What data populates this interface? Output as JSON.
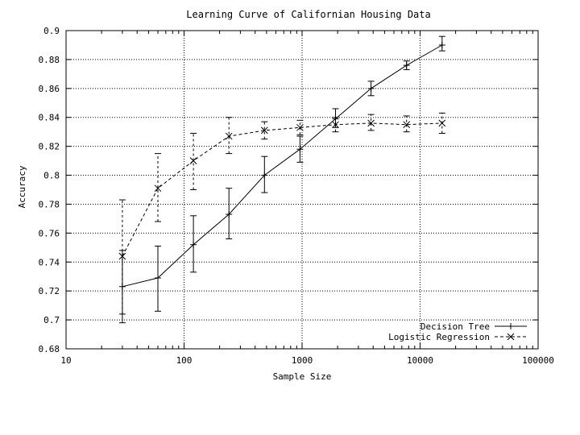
{
  "chart_data": {
    "type": "line",
    "title": "Learning Curve of Californian Housing Data",
    "xlabel": "Sample Size",
    "ylabel": "Accuracy",
    "xscale": "log",
    "xlim": [
      10,
      100000
    ],
    "ylim": [
      0.68,
      0.9
    ],
    "x_ticks": [
      {
        "value": 10,
        "label": "10"
      },
      {
        "value": 100,
        "label": "100"
      },
      {
        "value": 1000,
        "label": "1000"
      },
      {
        "value": 10000,
        "label": "10000"
      },
      {
        "value": 100000,
        "label": "100000"
      }
    ],
    "y_ticks": [
      {
        "value": 0.68,
        "label": "0.68"
      },
      {
        "value": 0.7,
        "label": "0.7"
      },
      {
        "value": 0.72,
        "label": "0.72"
      },
      {
        "value": 0.74,
        "label": "0.74"
      },
      {
        "value": 0.76,
        "label": "0.76"
      },
      {
        "value": 0.78,
        "label": "0.78"
      },
      {
        "value": 0.8,
        "label": "0.8"
      },
      {
        "value": 0.82,
        "label": "0.82"
      },
      {
        "value": 0.84,
        "label": "0.84"
      },
      {
        "value": 0.86,
        "label": "0.86"
      },
      {
        "value": 0.88,
        "label": "0.88"
      },
      {
        "value": 0.9,
        "label": "0.9"
      }
    ],
    "grid": true,
    "legend_position": "bottom-right",
    "series": [
      {
        "name": "Decision Tree",
        "line_style": "solid",
        "marker": "plus",
        "points": [
          {
            "x": 30,
            "y": 0.723,
            "lo": 0.698,
            "hi": 0.748
          },
          {
            "x": 60,
            "y": 0.729,
            "lo": 0.706,
            "hi": 0.751
          },
          {
            "x": 120,
            "y": 0.752,
            "lo": 0.733,
            "hi": 0.772
          },
          {
            "x": 240,
            "y": 0.773,
            "lo": 0.756,
            "hi": 0.791
          },
          {
            "x": 480,
            "y": 0.8,
            "lo": 0.788,
            "hi": 0.813
          },
          {
            "x": 960,
            "y": 0.818,
            "lo": 0.809,
            "hi": 0.827
          },
          {
            "x": 1920,
            "y": 0.839,
            "lo": 0.833,
            "hi": 0.846
          },
          {
            "x": 3840,
            "y": 0.86,
            "lo": 0.855,
            "hi": 0.865
          },
          {
            "x": 7680,
            "y": 0.876,
            "lo": 0.873,
            "hi": 0.879
          },
          {
            "x": 15360,
            "y": 0.89,
            "lo": 0.886,
            "hi": 0.896
          }
        ]
      },
      {
        "name": "Logistic Regression",
        "line_style": "dashed",
        "marker": "x",
        "points": [
          {
            "x": 30,
            "y": 0.744,
            "lo": 0.704,
            "hi": 0.783
          },
          {
            "x": 60,
            "y": 0.791,
            "lo": 0.768,
            "hi": 0.815
          },
          {
            "x": 120,
            "y": 0.81,
            "lo": 0.79,
            "hi": 0.829
          },
          {
            "x": 240,
            "y": 0.827,
            "lo": 0.815,
            "hi": 0.84
          },
          {
            "x": 480,
            "y": 0.831,
            "lo": 0.825,
            "hi": 0.837
          },
          {
            "x": 960,
            "y": 0.833,
            "lo": 0.828,
            "hi": 0.838
          },
          {
            "x": 1920,
            "y": 0.835,
            "lo": 0.83,
            "hi": 0.84
          },
          {
            "x": 3840,
            "y": 0.836,
            "lo": 0.831,
            "hi": 0.842
          },
          {
            "x": 7680,
            "y": 0.835,
            "lo": 0.83,
            "hi": 0.841
          },
          {
            "x": 15360,
            "y": 0.836,
            "lo": 0.829,
            "hi": 0.843
          }
        ]
      }
    ]
  }
}
